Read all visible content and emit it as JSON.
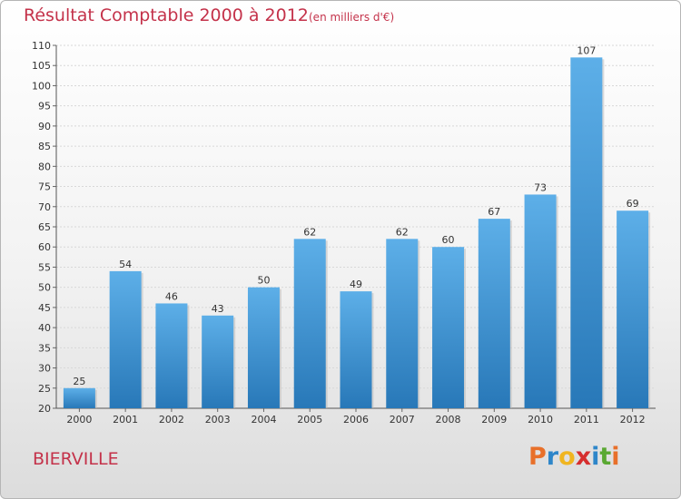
{
  "header": {
    "title": "Résultat Comptable 2000 à 2012",
    "subtitle": "(en milliers d'€)"
  },
  "footer": {
    "commune": "BIERVILLE",
    "logo_letters": [
      {
        "char": "P",
        "color": "#e8702a"
      },
      {
        "char": "r",
        "color": "#2e86c9"
      },
      {
        "char": "o",
        "color": "#f0b520"
      },
      {
        "char": "x",
        "color": "#d62e2e"
      },
      {
        "char": "i",
        "color": "#2e86c9"
      },
      {
        "char": "t",
        "color": "#5aa832"
      },
      {
        "char": "i",
        "color": "#e8702a"
      }
    ]
  },
  "chart_data": {
    "type": "bar",
    "title": "Résultat Comptable 2000 à 2012",
    "subtitle": "(en milliers d'€)",
    "categories": [
      "2000",
      "2001",
      "2002",
      "2003",
      "2004",
      "2005",
      "2006",
      "2007",
      "2008",
      "2009",
      "2010",
      "2011",
      "2012"
    ],
    "values": [
      25,
      54,
      46,
      43,
      50,
      62,
      49,
      62,
      60,
      67,
      73,
      107,
      69
    ],
    "ylim": [
      20,
      110
    ],
    "yticks": [
      20,
      25,
      30,
      35,
      40,
      45,
      50,
      55,
      60,
      65,
      70,
      75,
      80,
      85,
      90,
      95,
      100,
      105,
      110
    ],
    "grid": true,
    "bar_color_top": "#5dafe8",
    "bar_color_bottom": "#2878b8"
  }
}
